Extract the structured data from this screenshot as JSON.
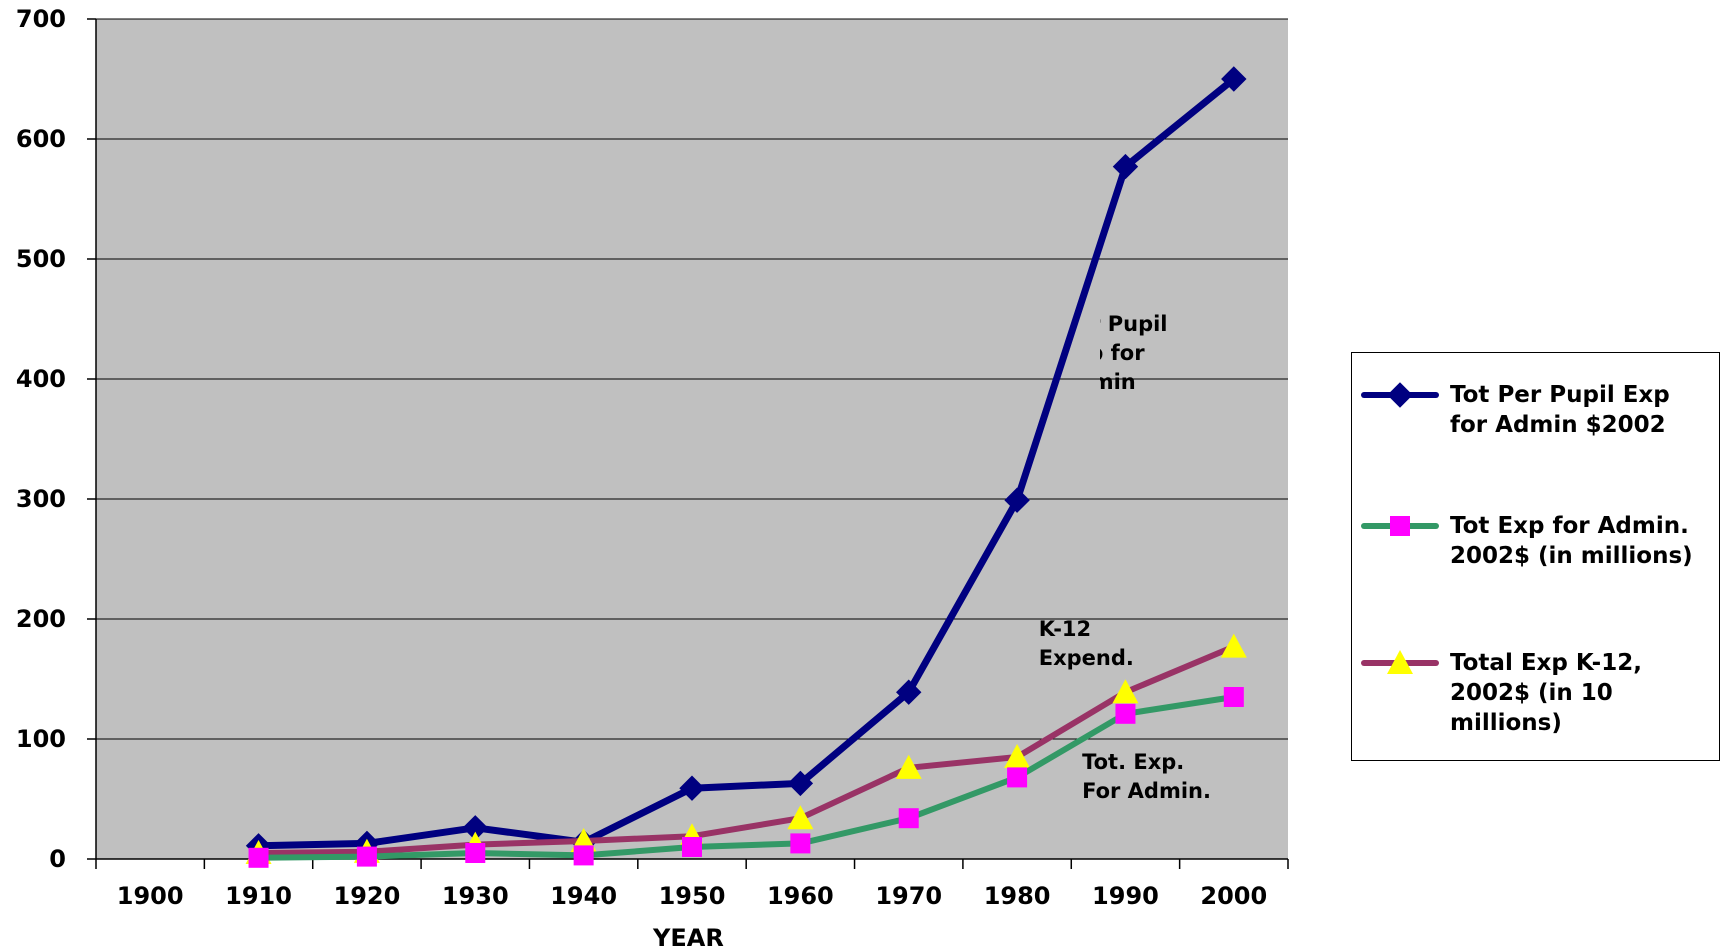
{
  "chart_data": {
    "type": "line",
    "xlabel": "YEAR",
    "ylabel": "",
    "x": [
      1900,
      1910,
      1920,
      1930,
      1940,
      1950,
      1960,
      1970,
      1980,
      1990,
      2000
    ],
    "x_ticks": [
      "1900",
      "1910",
      "1920",
      "1930",
      "1940",
      "1950",
      "1960",
      "1970",
      "1980",
      "1990",
      "2000"
    ],
    "y_ticks": [
      "0",
      "100",
      "200",
      "300",
      "400",
      "500",
      "600",
      "700"
    ],
    "ylim": [
      0,
      700
    ],
    "grid": true,
    "legend_position": "right",
    "plot_background": "#c0c0c0",
    "series": [
      {
        "name": "Tot Per Pupil Exp for Admin $2002",
        "color": "#000080",
        "marker": "diamond",
        "marker_color": "#000080",
        "x": [
          1910,
          1920,
          1930,
          1940,
          1950,
          1960,
          1970,
          1980,
          1990,
          2000
        ],
        "values": [
          11,
          13,
          26,
          14,
          59,
          63,
          139,
          299,
          577,
          650
        ]
      },
      {
        "name": "Tot Exp for Admin. 2002$ (in millions)",
        "color": "#339966",
        "marker": "square",
        "marker_color": "#ff00ff",
        "x": [
          1910,
          1920,
          1930,
          1940,
          1950,
          1960,
          1970,
          1980,
          1990,
          2000
        ],
        "values": [
          1,
          2,
          5,
          3,
          10,
          13,
          34,
          68,
          121,
          135
        ]
      },
      {
        "name": "Total Exp K-12, 2002$ (in 10 millions)",
        "color": "#993366",
        "marker": "triangle",
        "marker_color": "#ffff00",
        "x": [
          1910,
          1920,
          1930,
          1940,
          1950,
          1960,
          1970,
          1980,
          1990,
          2000
        ],
        "values": [
          5,
          6,
          12,
          15,
          19,
          34,
          76,
          85,
          139,
          177
        ]
      }
    ],
    "annotations": [
      {
        "lines": [
          "Per Pupil",
          "Exp for",
          "Admin"
        ],
        "x": 1989,
        "y": 440
      },
      {
        "lines": [
          "K-12",
          "Expend."
        ],
        "x": 1987,
        "y": 186
      },
      {
        "lines": [
          "Tot. Exp.",
          "For Admin."
        ],
        "x": 1991,
        "y": 75
      }
    ]
  }
}
